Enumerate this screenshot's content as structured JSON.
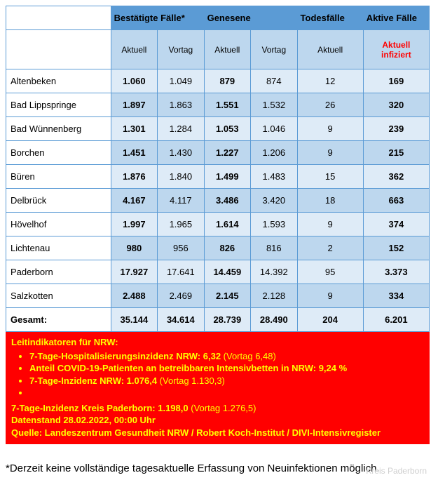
{
  "table": {
    "header_groups": {
      "confirmed": "Bestätigte Fälle*",
      "recovered": "Genesene",
      "deaths": "Todesfälle",
      "active": "Aktive Fälle"
    },
    "sub_headers": {
      "current": "Aktuell",
      "previous": "Vortag",
      "current_infected": "Aktuell infiziert"
    },
    "rows": [
      {
        "name": "Altenbeken",
        "bf_a": "1.060",
        "bf_v": "1.049",
        "g_a": "879",
        "g_v": "874",
        "t_a": "12",
        "af": "169"
      },
      {
        "name": "Bad Lippspringe",
        "bf_a": "1.897",
        "bf_v": "1.863",
        "g_a": "1.551",
        "g_v": "1.532",
        "t_a": "26",
        "af": "320"
      },
      {
        "name": "Bad Wünnenberg",
        "bf_a": "1.301",
        "bf_v": "1.284",
        "g_a": "1.053",
        "g_v": "1.046",
        "t_a": "9",
        "af": "239"
      },
      {
        "name": "Borchen",
        "bf_a": "1.451",
        "bf_v": "1.430",
        "g_a": "1.227",
        "g_v": "1.206",
        "t_a": "9",
        "af": "215"
      },
      {
        "name": "Büren",
        "bf_a": "1.876",
        "bf_v": "1.840",
        "g_a": "1.499",
        "g_v": "1.483",
        "t_a": "15",
        "af": "362"
      },
      {
        "name": "Delbrück",
        "bf_a": "4.167",
        "bf_v": "4.117",
        "g_a": "3.486",
        "g_v": "3.420",
        "t_a": "18",
        "af": "663"
      },
      {
        "name": "Hövelhof",
        "bf_a": "1.997",
        "bf_v": "1.965",
        "g_a": "1.614",
        "g_v": "1.593",
        "t_a": "9",
        "af": "374"
      },
      {
        "name": "Lichtenau",
        "bf_a": "980",
        "bf_v": "956",
        "g_a": "826",
        "g_v": "816",
        "t_a": "2",
        "af": "152"
      },
      {
        "name": "Paderborn",
        "bf_a": "17.927",
        "bf_v": "17.641",
        "g_a": "14.459",
        "g_v": "14.392",
        "t_a": "95",
        "af": "3.373"
      },
      {
        "name": "Salzkotten",
        "bf_a": "2.488",
        "bf_v": "2.469",
        "g_a": "2.145",
        "g_v": "2.128",
        "t_a": "9",
        "af": "334"
      }
    ],
    "total": {
      "name": "Gesamt:",
      "bf_a": "35.144",
      "bf_v": "34.614",
      "g_a": "28.739",
      "g_v": "28.490",
      "t_a": "204",
      "af": "6.201"
    }
  },
  "redbox": {
    "title": "Leitindikatoren für NRW:",
    "bullets": [
      {
        "label": "7-Tage-Hospitalisierungsinzidenz NRW: 6,32",
        "paren": " (Vortag 6,48)"
      },
      {
        "label": "Anteil COVID-19-Patienten an betreibbaren Intensivbetten in NRW: 9,24 %",
        "paren": ""
      },
      {
        "label": "7-Tage-Inzidenz NRW: 1.076,4",
        "paren": " (Vortag 1.130,3)"
      },
      {
        "label": "",
        "paren": ""
      }
    ],
    "kreis_label": "7-Tage-Inzidenz Kreis Paderborn: 1.198,0",
    "kreis_paren": " (Vortag 1.276,5)",
    "datenstand": "Datenstand 28.02.2022, 00:00 Uhr",
    "quelle": "Quelle: Landeszentrum Gesundheit NRW / Robert Koch-Institut / DIVI-Intensivregister"
  },
  "footnote": "*Derzeit keine vollständige tagesaktuelle Erfassung von Neuinfektionen möglich.",
  "watermark": "Kreis Paderborn",
  "colors": {
    "header_bg": "#5b9bd5",
    "subheader_bg": "#bdd7ee",
    "row_light": "#deebf7",
    "row_dark": "#bdd7ee",
    "redbox_bg": "#ff0000",
    "yellow": "#ffff00",
    "red_text": "#ff0000"
  }
}
